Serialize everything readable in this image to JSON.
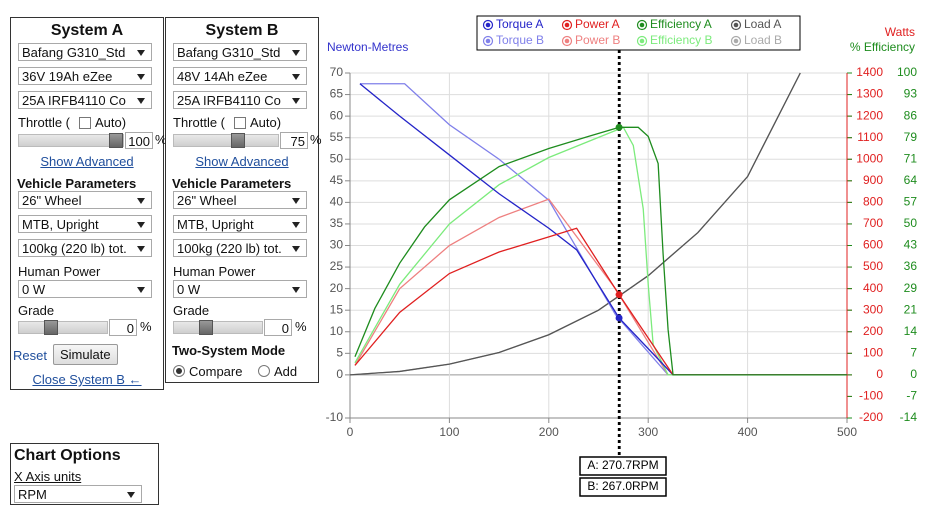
{
  "panels": [
    {
      "title": "System A",
      "motor": "Bafang G310_Std",
      "battery": "36V 19Ah eZee",
      "controller": "25A IRFB4110 Co",
      "throttle_label": "Throttle (",
      "auto_label": "Auto)",
      "throttle_value": "100",
      "percent": "%",
      "show_advanced": "Show Advanced",
      "vehicle_heading": "Vehicle Parameters",
      "wheel": "26\"  Wheel",
      "frame": "MTB, Upright",
      "mass": "100kg (220 lb) tot.",
      "human_label": "Human Power",
      "human": "0 W",
      "grade_label": "Grade",
      "grade_value": "0",
      "grade_percent": "%"
    },
    {
      "title": "System B",
      "motor": "Bafang G310_Std",
      "battery": "48V 14Ah eZee",
      "controller": "25A IRFB4110 Co",
      "throttle_label": "Throttle (",
      "auto_label": "Auto)",
      "throttle_value": "75",
      "percent": "%",
      "show_advanced": "Show Advanced",
      "vehicle_heading": "Vehicle Parameters",
      "wheel": "26\"  Wheel",
      "frame": "MTB, Upright",
      "mass": "100kg (220 lb) tot.",
      "human_label": "Human Power",
      "human": "0 W",
      "grade_label": "Grade",
      "grade_value": "0",
      "grade_percent": "%"
    }
  ],
  "reset": "Reset",
  "simulate": "Simulate",
  "close": "Close System B ←",
  "two_system_heading": "Two-System Mode",
  "compare": "Compare",
  "add": "Add",
  "chart_options": {
    "title": "Chart Options",
    "x_units_label": "X Axis units",
    "x_units": "RPM"
  },
  "chart_data": {
    "type": "line",
    "y_label": "Newton-Metres",
    "y2_label": "Watts",
    "y3_label": "% Efficiency",
    "xlim": [
      0,
      500
    ],
    "xticks": [
      0,
      100,
      200,
      300,
      400,
      500
    ],
    "ylim": [
      -10,
      70
    ],
    "yticks": [
      -10,
      0,
      5,
      10,
      15,
      20,
      25,
      30,
      35,
      40,
      45,
      50,
      55,
      60,
      65,
      70
    ],
    "y2lim": [
      -200,
      1400
    ],
    "y2ticks": [
      -200,
      -100,
      0,
      100,
      200,
      300,
      400,
      500,
      600,
      700,
      800,
      900,
      1000,
      1100,
      1200,
      1300,
      1400
    ],
    "y3lim": [
      -14.29,
      100
    ],
    "y3ticks": [
      {
        "value": -14.29,
        "label": "-14"
      },
      {
        "value": -7.14,
        "label": "-7"
      },
      0,
      {
        "value": 7.14,
        "label": "7"
      },
      {
        "value": 14.29,
        "label": "14"
      },
      {
        "value": 21.43,
        "label": "21"
      },
      {
        "value": 28.57,
        "label": "29"
      },
      {
        "value": 35.71,
        "label": "36"
      },
      {
        "value": 42.86,
        "label": "43"
      },
      50,
      {
        "value": 57.14,
        "label": "57"
      },
      {
        "value": 64.29,
        "label": "64"
      },
      {
        "value": 71.43,
        "label": "71"
      },
      {
        "value": 78.57,
        "label": "79"
      },
      {
        "value": 85.71,
        "label": "86"
      },
      {
        "value": 92.86,
        "label": "93"
      },
      100
    ],
    "grid": true,
    "series": [
      {
        "name": "Torque A",
        "color": "#2424c8",
        "axis": "y",
        "x": [
          10,
          50,
          100,
          150,
          200,
          228,
          270.7,
          325,
          500
        ],
        "values": [
          67.5,
          60,
          51,
          42,
          34,
          29,
          13.2,
          0,
          0
        ]
      },
      {
        "name": "Power A",
        "color": "#e02020",
        "axis": "y2",
        "x": [
          5,
          50,
          100,
          150,
          200,
          228,
          270.7,
          325,
          500
        ],
        "values": [
          44,
          290,
          470,
          570,
          640,
          680,
          372,
          0,
          0
        ]
      },
      {
        "name": "Efficiency A",
        "color": "#1e8c1e",
        "axis": "y3",
        "x": [
          5,
          25,
          50,
          75,
          100,
          150,
          200,
          240,
          270.7,
          290,
          300,
          310,
          315,
          320,
          325,
          500
        ],
        "values": [
          6,
          22,
          37,
          49,
          58,
          69,
          75,
          79,
          82,
          82,
          79,
          70,
          40,
          15,
          0,
          0
        ]
      },
      {
        "name": "Load A",
        "color": "#555555",
        "axis": "y",
        "x": [
          0,
          50,
          100,
          150,
          200,
          250,
          300,
          350,
          400,
          453
        ],
        "values": [
          0,
          0.8,
          2.5,
          5.2,
          9.3,
          15,
          23,
          33,
          46,
          70
        ]
      },
      {
        "name": "Torque B",
        "color": "#8080ea",
        "axis": "y",
        "x": [
          10,
          55,
          100,
          150,
          200,
          267,
          320,
          500
        ],
        "values": [
          67.5,
          67.5,
          58,
          50,
          40.5,
          14,
          0,
          0
        ]
      },
      {
        "name": "Power B",
        "color": "#ee8080",
        "axis": "y2",
        "x": [
          5,
          50,
          100,
          150,
          200,
          267,
          320,
          500
        ],
        "values": [
          44,
          400,
          600,
          730,
          815,
          400,
          0,
          0
        ]
      },
      {
        "name": "Efficiency B",
        "color": "#7ceb7c",
        "axis": "y3",
        "x": [
          5,
          50,
          100,
          150,
          200,
          260,
          275,
          285,
          295,
          300,
          305,
          320,
          500
        ],
        "values": [
          4,
          30,
          50,
          63,
          72,
          80,
          82,
          76,
          55,
          30,
          10,
          0,
          0
        ]
      },
      {
        "name": "Load B",
        "color": "#aaaaaa",
        "axis": "y",
        "x": [
          0,
          50,
          100,
          150,
          200,
          250,
          300,
          350,
          400,
          453
        ],
        "values": [
          0,
          0.8,
          2.5,
          5.2,
          9.3,
          15,
          23,
          33,
          46,
          70
        ]
      }
    ],
    "cursors": [
      {
        "label": "A: 270.7RPM",
        "x": 270.7
      },
      {
        "label": "B: 267.0RPM",
        "x": 267.0
      }
    ]
  }
}
